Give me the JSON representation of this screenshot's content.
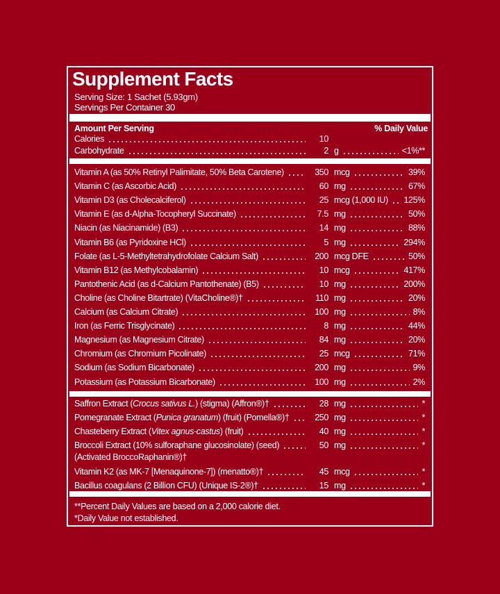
{
  "header": {
    "title": "Supplement Facts",
    "serving_size": "Serving Size: 1 Sachet (5.93gm)",
    "servings": "Servings Per Container 30"
  },
  "columns": {
    "amount": "Amount Per Serving",
    "daily_value": "% Daily Value"
  },
  "basics": [
    {
      "name": "Calories",
      "amount": "10"
    },
    {
      "name": "Carbohydrate",
      "amount": "2",
      "unit": "g",
      "dv": "<1%**"
    }
  ],
  "vitamins": [
    {
      "name": "Vitamin A (as 50% Retinyl Palimitate, 50% Beta Carotene)",
      "amount": "350",
      "unit": "mcg",
      "dv": "39%"
    },
    {
      "name": "Vitamin C (as Ascorbic Acid)",
      "amount": "60",
      "unit": "mg",
      "dv": "67%"
    },
    {
      "name": "Vitamin D3 (as Cholecalciferol)",
      "amount": "25",
      "unit": "mcg (1,000 IU)",
      "dv": "125%"
    },
    {
      "name": "Vitamin E (as d-Alpha-Tocopheryl Succinate)",
      "amount": "7.5",
      "unit": "mg",
      "dv": "50%"
    },
    {
      "name": "Niacin (as Niacinamide) (B3)",
      "amount": "14",
      "unit": "mg",
      "dv": "88%"
    },
    {
      "name": "Vitamin B6 (as Pyridoxine HCl)",
      "amount": "5",
      "unit": "mg",
      "dv": "294%"
    },
    {
      "name": "Folate (as L-5-Methyltetrahydrofolate Calcium Salt)",
      "amount": "200",
      "unit": "mcg DFE",
      "dv": "50%"
    },
    {
      "name": "Vitamin B12 (as Methylcobalamin)",
      "amount": "10",
      "unit": "mcg",
      "dv": "417%"
    },
    {
      "name": "Pantothenic Acid (as d-Calcium Pantothenate) (B5)",
      "amount": "10",
      "unit": "mg",
      "dv": "200%"
    },
    {
      "name": "Choline (as Choline Bitartrate) (VitaCholine®)†",
      "amount": "110",
      "unit": "mg",
      "dv": "20%"
    },
    {
      "name": "Calcium (as Calcium Citrate)",
      "amount": "100",
      "unit": "mg",
      "dv": "8%"
    },
    {
      "name": "Iron (as Ferric Trisglycinate)",
      "amount": "8",
      "unit": "mg",
      "dv": "44%"
    },
    {
      "name": "Magnesium (as Magnesium Citrate)",
      "amount": "84",
      "unit": "mg",
      "dv": "20%"
    },
    {
      "name": "Chromium (as Chromium Picolinate)",
      "amount": "25",
      "unit": "mcg",
      "dv": "71%"
    },
    {
      "name": "Sodium (as Sodium Bicarbonate)",
      "amount": "200",
      "unit": "mg",
      "dv": "9%"
    },
    {
      "name": "Potassium (as Potassium Bicarbonate)",
      "amount": "100",
      "unit": "mg",
      "dv": "2%"
    }
  ],
  "extracts": [
    {
      "name": [
        "Saffron Extract (",
        "Crocus sativus L.",
        ") (stigma) (Affron®)†"
      ],
      "amount": "28",
      "unit": "mg",
      "dv": "*"
    },
    {
      "name": [
        "Pomegranate Extract (",
        "Punica granatum",
        ") (fruit) (Pomella®)†"
      ],
      "amount": "250",
      "unit": "mg",
      "dv": "*"
    },
    {
      "name": [
        "Chasteberry Extract (",
        "Vitex agnus-castus",
        ") (fruit)"
      ],
      "amount": "40",
      "unit": "mg",
      "dv": "*"
    },
    {
      "name": "Broccoli Extract (10% sulforaphane glucosinolate) (seed)",
      "name_cont": "(Activated BroccoRaphanin®)†",
      "amount": "50",
      "unit": "mg",
      "dv": "*"
    },
    {
      "name": "Vitamin K2 (as MK-7 [Menaquinone-7]) (menatto®)†",
      "amount": "45",
      "unit": "mcg",
      "dv": "*"
    },
    {
      "name": "Bacillus coagulans (2 Billion CFU) (Unique IS-2®)†",
      "amount": "15",
      "unit": "mg",
      "dv": "*"
    }
  ],
  "footnotes": [
    "**Percent Daily Values are based on a 2,000 calorie diet.",
    "*Daily Value not established."
  ]
}
